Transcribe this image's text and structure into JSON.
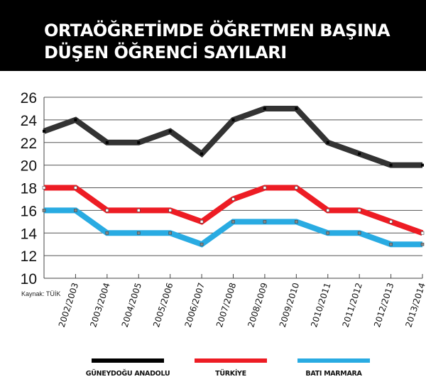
{
  "header": {
    "title_line1": "ORTAÖĞRETİMDE ÖĞRETMEN BAŞINA",
    "title_line2": "DÜŞEN ÖĞRENCİ SAYILARI",
    "background": "#000000"
  },
  "source": "Kaynak: TÜİK",
  "legend": [
    {
      "label": "GÜNEYDOĞU ANADOLU",
      "color": "#000000"
    },
    {
      "label": "TÜRKİYE",
      "color": "#ed1c24"
    },
    {
      "label": "BATI MARMARA",
      "color": "#29abe2"
    }
  ],
  "chart_data": {
    "type": "line",
    "title": "ORTAÖĞRETİMDE ÖĞRETMEN BAŞINA DÜŞEN ÖĞRENCİ SAYILARI",
    "xlabel": "",
    "ylabel": "",
    "ylim": [
      10,
      26
    ],
    "yticks": [
      10,
      12,
      14,
      16,
      18,
      20,
      22,
      24,
      26
    ],
    "grid": true,
    "legend_position": "bottom",
    "categories": [
      "",
      "2002/2003",
      "2003/2004",
      "2004/2005",
      "2005/2006",
      "2006/2007",
      "2007/2008",
      "2008/2009",
      "2009/2010",
      "2010/2011",
      "2011/2012",
      "2012/2013",
      "2013/2014"
    ],
    "series": [
      {
        "name": "GÜNEYDOĞU ANADOLU",
        "color": "#333333",
        "values": [
          23,
          24,
          22,
          22,
          23,
          21,
          24,
          25,
          25,
          22,
          21,
          20,
          20
        ]
      },
      {
        "name": "TÜRKİYE",
        "color": "#ed1c24",
        "values": [
          18,
          18,
          16,
          16,
          16,
          15,
          17,
          18,
          18,
          16,
          16,
          15,
          14
        ]
      },
      {
        "name": "BATI MARMARA",
        "color": "#29abe2",
        "values": [
          16,
          16,
          14,
          14,
          14,
          13,
          15,
          15,
          15,
          14,
          14,
          13,
          13
        ]
      }
    ],
    "annotations": [
      "Kaynak: TÜİK"
    ]
  }
}
